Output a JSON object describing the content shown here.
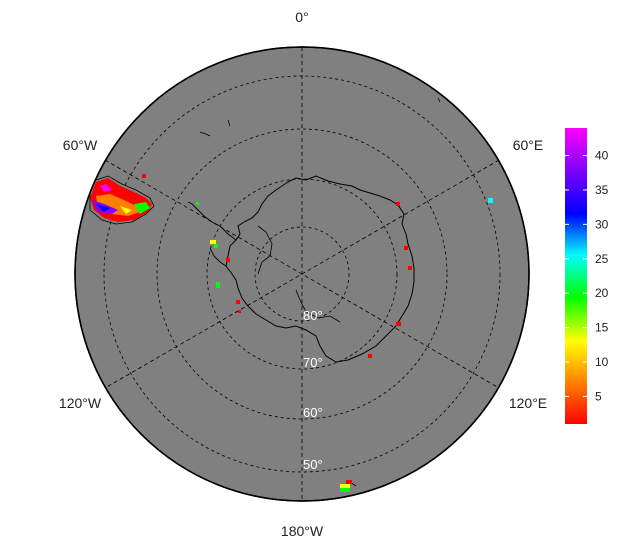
{
  "map": {
    "projection": "south-polar-stereographic",
    "background_color": "#808080",
    "coastline_color": "#000000",
    "graticule_style": "dashed",
    "lat_circles": [
      {
        "label": "80°",
        "lat": -80
      },
      {
        "label": "70°",
        "lat": -70
      },
      {
        "label": "60°",
        "lat": -60
      },
      {
        "label": "50°",
        "lat": -50
      }
    ],
    "lon_labels": [
      {
        "label": "0°",
        "lon": 0
      },
      {
        "label": "60°E",
        "lon": 60
      },
      {
        "label": "120°E",
        "lon": 120
      },
      {
        "label": "180°W",
        "lon": 180
      },
      {
        "label": "120°W",
        "lon": -120
      },
      {
        "label": "60°W",
        "lon": -60
      }
    ]
  },
  "colorbar": {
    "ticks": [
      "5",
      "10",
      "15",
      "20",
      "25",
      "30",
      "35",
      "40"
    ],
    "tick_values": [
      5,
      10,
      15,
      20,
      25,
      30,
      35,
      40
    ],
    "range": [
      1,
      44
    ],
    "colors": [
      "#ff0000",
      "#ff8000",
      "#ffff00",
      "#00ff00",
      "#00ffff",
      "#0000ff",
      "#8000ff",
      "#ff00ff"
    ]
  }
}
